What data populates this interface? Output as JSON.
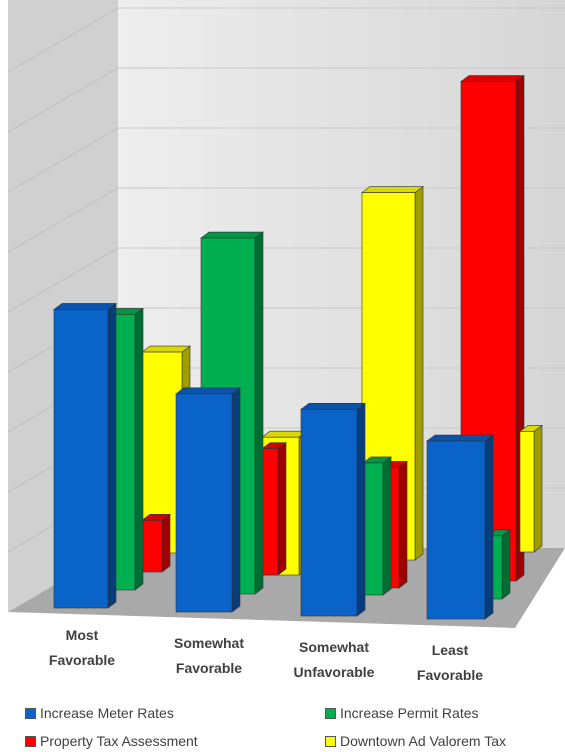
{
  "chart_data": {
    "type": "bar",
    "categories": [
      {
        "line1": "Most",
        "line2": "Favorable"
      },
      {
        "line1": "Somewhat",
        "line2": "Favorable"
      },
      {
        "line1": "Somewhat",
        "line2": "Unfavorable"
      },
      {
        "line1": "Least",
        "line2": "Favorable"
      }
    ],
    "series": [
      {
        "name": "Increase Meter Rates",
        "color": "#0a63c8",
        "values": [
          52,
          38,
          36,
          31
        ]
      },
      {
        "name": "Increase Permit Rates",
        "color": "#00b050",
        "values": [
          48,
          62,
          23,
          11
        ]
      },
      {
        "name": "Downtown Ad Valorem Tax",
        "color": "#ffff00",
        "values": [
          35,
          24,
          64,
          21
        ]
      },
      {
        "name": "Property Tax Assessment",
        "color": "#ff0000",
        "values": [
          9,
          22,
          21,
          87
        ]
      }
    ],
    "ylim": [
      0,
      90
    ],
    "grid": true,
    "style": "3d-clustered-column",
    "legend_position": "bottom"
  }
}
